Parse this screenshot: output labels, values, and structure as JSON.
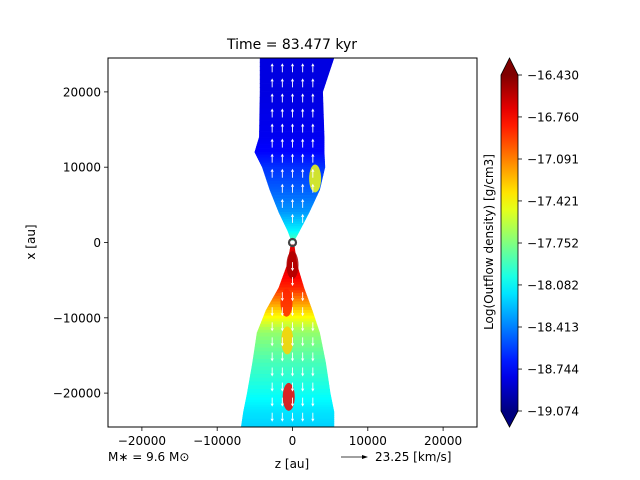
{
  "chart_data": {
    "type": "heatmap",
    "title": "Time = 83.477 kyr",
    "xlabel": "z [au]",
    "ylabel": "x [au]",
    "xlim": [
      -24500,
      24500
    ],
    "ylim": [
      -24500,
      24500
    ],
    "x_ticks": [
      -20000,
      -10000,
      0,
      10000,
      20000
    ],
    "x_tick_labels": [
      "−20000",
      "−10000",
      "0",
      "10000",
      "20000"
    ],
    "y_ticks": [
      20000,
      10000,
      0,
      -10000,
      -20000
    ],
    "y_tick_labels": [
      "20000",
      "10000",
      "0",
      "−10000",
      "−20000"
    ],
    "colorbar": {
      "label": "Log(Outflow density) [g/cm3]",
      "colormap": "jet",
      "min": -19.074,
      "max": -16.43,
      "ticks": [
        -16.43,
        -16.76,
        -17.091,
        -17.421,
        -17.752,
        -18.082,
        -18.413,
        -18.744,
        -19.074
      ],
      "tick_labels": [
        "−16.430",
        "−16.760",
        "−17.091",
        "−17.421",
        "−17.752",
        "−18.082",
        "−18.413",
        "−18.744",
        "−19.074"
      ],
      "extend": "both"
    },
    "upper_lobe_profile": [
      {
        "x": 24500,
        "z_left": -4300,
        "z_right": 5500,
        "value": -18.82
      },
      {
        "x": 20000,
        "z_left": -4300,
        "z_right": 4000,
        "value": -18.82
      },
      {
        "x": 14000,
        "z_left": -4400,
        "z_right": 4200,
        "value": -18.78
      },
      {
        "x": 12000,
        "z_left": -5000,
        "z_right": 4200,
        "value": -18.74
      },
      {
        "x": 10000,
        "z_left": -4000,
        "z_right": 4300,
        "value": -18.62
      },
      {
        "x": 7000,
        "z_left": -3000,
        "z_right": 3600,
        "value": -18.5
      },
      {
        "x": 4000,
        "z_left": -1800,
        "z_right": 2200,
        "value": -18.35
      },
      {
        "x": 1500,
        "z_left": -600,
        "z_right": 900,
        "value": -18.1
      },
      {
        "x": 300,
        "z_left": -150,
        "z_right": 250,
        "value": -17.9
      }
    ],
    "lower_lobe_profile": [
      {
        "x": -300,
        "z_left": -200,
        "z_right": 200,
        "value": -16.7
      },
      {
        "x": -3000,
        "z_left": -700,
        "z_right": 600,
        "value": -16.65
      },
      {
        "x": -6000,
        "z_left": -1800,
        "z_right": 1500,
        "value": -16.85
      },
      {
        "x": -9000,
        "z_left": -3500,
        "z_right": 2600,
        "value": -17.3
      },
      {
        "x": -12000,
        "z_left": -4700,
        "z_right": 3600,
        "value": -17.7
      },
      {
        "x": -16000,
        "z_left": -5300,
        "z_right": 4400,
        "value": -17.9
      },
      {
        "x": -20000,
        "z_left": -6000,
        "z_right": 5000,
        "value": -18.05
      },
      {
        "x": -22500,
        "z_left": -6500,
        "z_right": 5500,
        "value": -18.15
      },
      {
        "x": -24500,
        "z_left": -6800,
        "z_right": 5500,
        "value": -18.2
      }
    ],
    "hot_spots": [
      {
        "z": 0,
        "x": -3000,
        "value": -16.55
      },
      {
        "z": -800,
        "x": -8000,
        "value": -16.85
      },
      {
        "z": -500,
        "x": -20500,
        "value": -16.75
      },
      {
        "z": -700,
        "x": -13000,
        "value": -17.3
      },
      {
        "z": 3000,
        "x": 8500,
        "value": -17.45
      }
    ],
    "star": {
      "z": 0,
      "x": 0
    },
    "velocity_arrows_columns_z": [
      -2700,
      -1350,
      0,
      1350,
      2700
    ],
    "annotations": {
      "mass": "M∗ = 9.6 M⊙",
      "velocity_scale": "23.25 [km/s]"
    }
  }
}
